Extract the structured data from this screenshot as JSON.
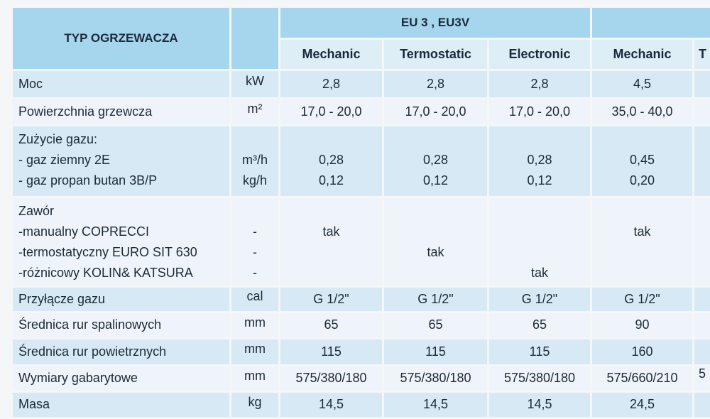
{
  "table": {
    "header_label": "TYP OGRZEWACZA",
    "group_label": "EU 3 , EU3V",
    "models": [
      "Mechanic",
      "Termostatic",
      "Electronic",
      "Mechanic",
      "T"
    ],
    "rows": [
      {
        "label": [
          "Moc"
        ],
        "unit": [
          "kW"
        ],
        "values": [
          [
            "2,8"
          ],
          [
            "2,8"
          ],
          [
            "2,8"
          ],
          [
            "4,5"
          ],
          [
            ""
          ]
        ]
      },
      {
        "label": [
          "Powierzchnia grzewcza"
        ],
        "unit": [
          "m²"
        ],
        "values": [
          [
            "17,0 - 20,0"
          ],
          [
            "17,0 - 20,0"
          ],
          [
            "17,0 - 20,0"
          ],
          [
            "35,0 - 40,0"
          ],
          [
            ""
          ]
        ]
      },
      {
        "label": [
          "Zużycie gazu:",
          "- gaz ziemny 2E",
          "- gaz propan butan 3B/P"
        ],
        "unit": [
          "",
          "m³/h",
          "kg/h"
        ],
        "values": [
          [
            "",
            "0,28",
            "0,12"
          ],
          [
            "",
            "0,28",
            "0,12"
          ],
          [
            "",
            "0,28",
            "0,12"
          ],
          [
            "",
            "0,45",
            "0,20"
          ],
          [
            "",
            "",
            ""
          ]
        ]
      },
      {
        "label": [
          "Zawór",
          "-manualny COPRECCI",
          "-termostatyczny EURO SIT 630",
          "-różnicowy KOLIN& KATSURA"
        ],
        "unit": [
          "",
          "-",
          "-",
          "-"
        ],
        "values": [
          [
            "",
            "tak",
            "",
            ""
          ],
          [
            "",
            "",
            "tak",
            ""
          ],
          [
            "",
            "",
            "",
            "tak"
          ],
          [
            "",
            "tak",
            "",
            ""
          ],
          [
            "",
            "",
            "",
            ""
          ]
        ]
      },
      {
        "label": [
          "Przyłącze gazu"
        ],
        "unit": [
          "cal"
        ],
        "values": [
          [
            "G 1/2\""
          ],
          [
            "G 1/2\""
          ],
          [
            "G 1/2\""
          ],
          [
            "G 1/2\""
          ],
          [
            ""
          ]
        ]
      },
      {
        "label": [
          "Średnica rur spalinowych"
        ],
        "unit": [
          "mm"
        ],
        "values": [
          [
            "65"
          ],
          [
            "65"
          ],
          [
            "65"
          ],
          [
            "90"
          ],
          [
            ""
          ]
        ]
      },
      {
        "label": [
          "Średnica rur powietrznych"
        ],
        "unit": [
          "mm"
        ],
        "values": [
          [
            "115"
          ],
          [
            "115"
          ],
          [
            "115"
          ],
          [
            "160"
          ],
          [
            ""
          ]
        ]
      },
      {
        "label": [
          "Wymiary gabarytowe"
        ],
        "unit": [
          "mm"
        ],
        "values": [
          [
            "575/380/180"
          ],
          [
            "575/380/180"
          ],
          [
            "575/380/180"
          ],
          [
            "575/660/210"
          ],
          [
            "5"
          ]
        ]
      },
      {
        "label": [
          "Masa"
        ],
        "unit": [
          "kg"
        ],
        "values": [
          [
            "14,5"
          ],
          [
            "14,5"
          ],
          [
            "14,5"
          ],
          [
            "24,5"
          ],
          [
            ""
          ]
        ]
      }
    ]
  }
}
